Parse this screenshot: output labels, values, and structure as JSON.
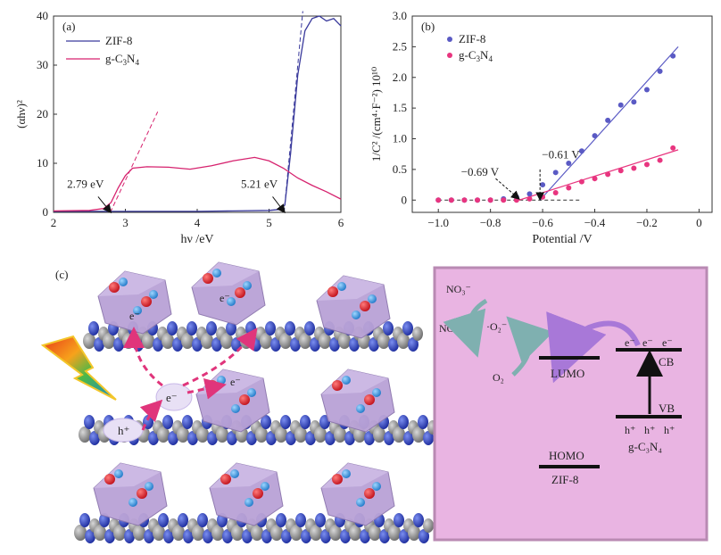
{
  "chart_data": [
    {
      "type": "line",
      "panel_label": "(a)",
      "xlabel": "hν /eV",
      "ylabel": "(αhν)²",
      "xlim": [
        2,
        6
      ],
      "ylim": [
        0,
        40
      ],
      "xticks": [
        "2",
        "3",
        "4",
        "5",
        "6"
      ],
      "yticks": [
        "0",
        "10",
        "20",
        "30",
        "40"
      ],
      "series": [
        {
          "name": "ZIF-8",
          "color": "#3a3a9c",
          "x": [
            2.0,
            2.5,
            3.0,
            3.5,
            4.0,
            4.5,
            5.0,
            5.15,
            5.22,
            5.3,
            5.4,
            5.5,
            5.6,
            5.7,
            5.8,
            5.9,
            6.0
          ],
          "y": [
            0.2,
            0.2,
            0.2,
            0.2,
            0.2,
            0.3,
            0.4,
            0.6,
            1.5,
            12,
            28,
            37,
            39.5,
            40,
            39,
            39.5,
            38
          ]
        },
        {
          "name": "g-C3N4",
          "color": "#d6226e",
          "x": [
            2.0,
            2.5,
            2.7,
            2.8,
            2.9,
            3.0,
            3.1,
            3.3,
            3.6,
            3.9,
            4.2,
            4.5,
            4.8,
            5.0,
            5.2,
            5.4,
            5.6,
            5.8,
            6.0
          ],
          "y": [
            0.3,
            0.4,
            0.8,
            2,
            5,
            7.5,
            9,
            9.3,
            9.2,
            8.8,
            9.5,
            10.5,
            11.2,
            10.5,
            9,
            7,
            5.5,
            4.2,
            2.7
          ]
        }
      ],
      "tangent_lines": [
        {
          "series": "g-C3N4",
          "x": [
            2.79,
            3.45
          ],
          "y": [
            0,
            20.5
          ],
          "color": "#d6226e"
        },
        {
          "series": "ZIF-8",
          "x": [
            5.21,
            5.47
          ],
          "y": [
            0,
            41
          ],
          "color": "#3a3a9c"
        }
      ],
      "annotations": [
        {
          "text": "2.79 eV",
          "x": 2.79,
          "y": 0
        },
        {
          "text": "5.21 eV",
          "x": 5.21,
          "y": 0
        }
      ],
      "legend": [
        {
          "label": "ZIF-8",
          "color": "#3a3a9c"
        },
        {
          "label": "g-C3N4",
          "color": "#d6226e"
        }
      ]
    },
    {
      "type": "scatter",
      "panel_label": "(b)",
      "xlabel": "Potential /V",
      "ylabel": "1/C² /(cm⁴·F⁻²) 10¹⁰",
      "xlim": [
        -1.1,
        0.05
      ],
      "ylim": [
        -0.2,
        3.0
      ],
      "xticks": [
        "−1.0",
        "−0.8",
        "−0.6",
        "−0.4",
        "−0.2",
        "0"
      ],
      "yticks": [
        "0",
        "0.5",
        "1.0",
        "1.5",
        "2.0",
        "2.5",
        "3.0"
      ],
      "series": [
        {
          "name": "ZIF-8",
          "color": "#5a5ac4",
          "x": [
            -1.0,
            -0.95,
            -0.9,
            -0.85,
            -0.8,
            -0.75,
            -0.7,
            -0.65,
            -0.6,
            -0.55,
            -0.5,
            -0.45,
            -0.4,
            -0.35,
            -0.3,
            -0.25,
            -0.2,
            -0.15,
            -0.1
          ],
          "y": [
            0.0,
            0.0,
            0.0,
            0.0,
            0.0,
            0.02,
            0.05,
            0.1,
            0.25,
            0.45,
            0.6,
            0.8,
            1.05,
            1.3,
            1.55,
            1.6,
            1.8,
            2.1,
            2.35
          ]
        },
        {
          "name": "g-C3N4",
          "color": "#e8357f",
          "x": [
            -1.0,
            -0.95,
            -0.9,
            -0.85,
            -0.8,
            -0.75,
            -0.7,
            -0.65,
            -0.6,
            -0.55,
            -0.5,
            -0.45,
            -0.4,
            -0.35,
            -0.3,
            -0.25,
            -0.2,
            -0.15,
            -0.1
          ],
          "y": [
            0.0,
            0.0,
            0.0,
            0.0,
            0.0,
            0.0,
            0.0,
            0.02,
            0.05,
            0.12,
            0.2,
            0.3,
            0.35,
            0.42,
            0.48,
            0.52,
            0.58,
            0.65,
            0.85
          ]
        }
      ],
      "fit_lines": [
        {
          "series": "ZIF-8",
          "x": [
            -0.61,
            -0.08
          ],
          "y": [
            0,
            2.5
          ],
          "color": "#5a5ac4"
        },
        {
          "series": "g-C3N4",
          "x": [
            -0.69,
            -0.08
          ],
          "y": [
            0,
            0.82
          ],
          "color": "#e8357f"
        }
      ],
      "baseline": {
        "x": [
          -1.0,
          -0.45
        ],
        "y": [
          0,
          0
        ]
      },
      "annotations": [
        {
          "text": "−0.61 V",
          "x": -0.61,
          "y": 0
        },
        {
          "text": "−0.69 V",
          "x": -0.69,
          "y": 0
        }
      ],
      "legend": [
        {
          "label": "ZIF-8",
          "color": "#5a5ac4"
        },
        {
          "label": "g-C3N4",
          "color": "#e8357f"
        }
      ]
    }
  ],
  "panel_c": {
    "panel_label": "(c)",
    "electron": "e⁻",
    "hole": "h⁺",
    "energy_diagram": {
      "bg_color": "#e9b4e2",
      "border_color": "#b98ab3",
      "no3": "NO₃⁻",
      "no": "NO",
      "o2_radical": "·O₂⁻",
      "o2": "O₂",
      "lumo": "LUMO",
      "homo": "HOMO",
      "zif8": "ZIF-8",
      "cb": "CB",
      "vb": "VB",
      "gc3n4": "g-C₃N₄",
      "cb_electrons": [
        "e⁻",
        "e⁻",
        "e⁻"
      ],
      "vb_holes": [
        "h⁺",
        "h⁺",
        "h⁺"
      ]
    }
  }
}
